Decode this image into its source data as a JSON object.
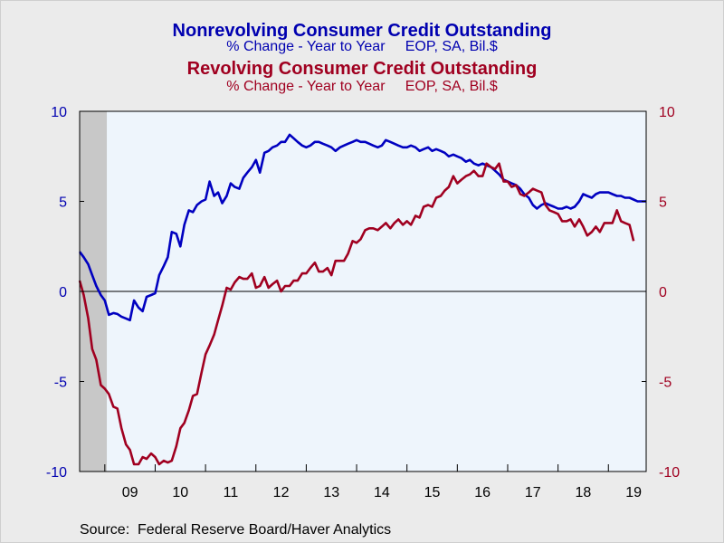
{
  "chart_data": {
    "type": "line",
    "titles": [
      {
        "title": "Nonrevolving Consumer Credit Outstanding",
        "subtitle": "% Change - Year to Year     EOP, SA, Bil.$",
        "color": "#0000b0"
      },
      {
        "title": "Revolving Consumer Credit Outstanding",
        "subtitle": "% Change - Year to Year     EOP, SA, Bil.$",
        "color": "#a00020"
      }
    ],
    "x_range": [
      2008.5,
      2019.75
    ],
    "x_ticks": [
      {
        "label": "09",
        "at": 2009.5
      },
      {
        "label": "10",
        "at": 2010.5
      },
      {
        "label": "11",
        "at": 2011.5
      },
      {
        "label": "12",
        "at": 2012.5
      },
      {
        "label": "13",
        "at": 2013.5
      },
      {
        "label": "14",
        "at": 2014.5
      },
      {
        "label": "15",
        "at": 2015.5
      },
      {
        "label": "16",
        "at": 2016.5
      },
      {
        "label": "17",
        "at": 2017.5
      },
      {
        "label": "18",
        "at": 2018.5
      },
      {
        "label": "19",
        "at": 2019.5
      }
    ],
    "ylim": [
      -10,
      10
    ],
    "y_ticks": [
      -10,
      -5,
      0,
      5,
      10
    ],
    "left_axis_color": "#0000b0",
    "right_axis_color": "#a00020",
    "recession_shading": {
      "start": 2008.5,
      "end": 2009.04,
      "color": "#c8c8c8"
    },
    "plot_background": "#eef5fc",
    "series": [
      {
        "name": "Nonrevolving Consumer Credit Outstanding",
        "axis": "left",
        "color": "#0000c0",
        "points": [
          [
            2008.5,
            2.2
          ],
          [
            2008.58,
            1.9
          ],
          [
            2008.67,
            1.5
          ],
          [
            2008.75,
            0.9
          ],
          [
            2008.83,
            0.3
          ],
          [
            2008.92,
            -0.2
          ],
          [
            2009.0,
            -0.5
          ],
          [
            2009.08,
            -1.3
          ],
          [
            2009.17,
            -1.2
          ],
          [
            2009.25,
            -1.25
          ],
          [
            2009.33,
            -1.4
          ],
          [
            2009.42,
            -1.5
          ],
          [
            2009.5,
            -1.6
          ],
          [
            2009.58,
            -0.5
          ],
          [
            2009.67,
            -0.9
          ],
          [
            2009.75,
            -1.1
          ],
          [
            2009.83,
            -0.3
          ],
          [
            2009.92,
            -0.2
          ],
          [
            2010.0,
            -0.1
          ],
          [
            2010.08,
            0.9
          ],
          [
            2010.17,
            1.4
          ],
          [
            2010.25,
            1.9
          ],
          [
            2010.33,
            3.3
          ],
          [
            2010.42,
            3.2
          ],
          [
            2010.5,
            2.5
          ],
          [
            2010.58,
            3.7
          ],
          [
            2010.67,
            4.5
          ],
          [
            2010.75,
            4.4
          ],
          [
            2010.83,
            4.8
          ],
          [
            2010.92,
            5.0
          ],
          [
            2011.0,
            5.1
          ],
          [
            2011.08,
            6.1
          ],
          [
            2011.17,
            5.3
          ],
          [
            2011.25,
            5.5
          ],
          [
            2011.33,
            4.9
          ],
          [
            2011.42,
            5.3
          ],
          [
            2011.5,
            6.0
          ],
          [
            2011.58,
            5.8
          ],
          [
            2011.67,
            5.7
          ],
          [
            2011.75,
            6.3
          ],
          [
            2011.83,
            6.6
          ],
          [
            2011.92,
            6.9
          ],
          [
            2012.0,
            7.3
          ],
          [
            2012.08,
            6.6
          ],
          [
            2012.17,
            7.7
          ],
          [
            2012.25,
            7.8
          ],
          [
            2012.33,
            8.0
          ],
          [
            2012.42,
            8.1
          ],
          [
            2012.5,
            8.3
          ],
          [
            2012.58,
            8.3
          ],
          [
            2012.67,
            8.7
          ],
          [
            2012.75,
            8.5
          ],
          [
            2012.83,
            8.3
          ],
          [
            2012.92,
            8.1
          ],
          [
            2013.0,
            8.0
          ],
          [
            2013.08,
            8.1
          ],
          [
            2013.17,
            8.3
          ],
          [
            2013.25,
            8.3
          ],
          [
            2013.33,
            8.2
          ],
          [
            2013.42,
            8.1
          ],
          [
            2013.5,
            8.0
          ],
          [
            2013.58,
            7.8
          ],
          [
            2013.67,
            8.0
          ],
          [
            2013.75,
            8.1
          ],
          [
            2013.83,
            8.2
          ],
          [
            2013.92,
            8.3
          ],
          [
            2014.0,
            8.4
          ],
          [
            2014.08,
            8.3
          ],
          [
            2014.17,
            8.3
          ],
          [
            2014.25,
            8.2
          ],
          [
            2014.33,
            8.1
          ],
          [
            2014.42,
            8.0
          ],
          [
            2014.5,
            8.1
          ],
          [
            2014.58,
            8.4
          ],
          [
            2014.67,
            8.3
          ],
          [
            2014.75,
            8.2
          ],
          [
            2014.83,
            8.1
          ],
          [
            2014.92,
            8.0
          ],
          [
            2015.0,
            8.0
          ],
          [
            2015.08,
            8.1
          ],
          [
            2015.17,
            8.0
          ],
          [
            2015.25,
            7.8
          ],
          [
            2015.33,
            7.9
          ],
          [
            2015.42,
            8.0
          ],
          [
            2015.5,
            7.8
          ],
          [
            2015.58,
            7.9
          ],
          [
            2015.67,
            7.8
          ],
          [
            2015.75,
            7.7
          ],
          [
            2015.83,
            7.5
          ],
          [
            2015.92,
            7.6
          ],
          [
            2016.0,
            7.5
          ],
          [
            2016.08,
            7.4
          ],
          [
            2016.17,
            7.2
          ],
          [
            2016.25,
            7.3
          ],
          [
            2016.33,
            7.1
          ],
          [
            2016.42,
            7.0
          ],
          [
            2016.5,
            7.1
          ],
          [
            2016.58,
            7.0
          ],
          [
            2016.67,
            6.9
          ],
          [
            2016.75,
            6.7
          ],
          [
            2016.83,
            6.5
          ],
          [
            2016.92,
            6.2
          ],
          [
            2017.0,
            6.1
          ],
          [
            2017.08,
            6.0
          ],
          [
            2017.17,
            5.9
          ],
          [
            2017.25,
            5.7
          ],
          [
            2017.33,
            5.4
          ],
          [
            2017.42,
            5.2
          ],
          [
            2017.5,
            4.8
          ],
          [
            2017.58,
            4.6
          ],
          [
            2017.67,
            4.8
          ],
          [
            2017.75,
            4.9
          ],
          [
            2017.83,
            4.8
          ],
          [
            2017.92,
            4.7
          ],
          [
            2018.0,
            4.6
          ],
          [
            2018.08,
            4.6
          ],
          [
            2018.17,
            4.7
          ],
          [
            2018.25,
            4.6
          ],
          [
            2018.33,
            4.7
          ],
          [
            2018.42,
            5.0
          ],
          [
            2018.5,
            5.4
          ],
          [
            2018.58,
            5.3
          ],
          [
            2018.67,
            5.2
          ],
          [
            2018.75,
            5.4
          ],
          [
            2018.83,
            5.5
          ],
          [
            2018.92,
            5.5
          ],
          [
            2019.0,
            5.5
          ],
          [
            2019.08,
            5.4
          ],
          [
            2019.17,
            5.3
          ],
          [
            2019.25,
            5.3
          ],
          [
            2019.33,
            5.2
          ],
          [
            2019.42,
            5.2
          ],
          [
            2019.5,
            5.1
          ],
          [
            2019.58,
            5.0
          ],
          [
            2019.67,
            5.0
          ],
          [
            2019.75,
            5.0
          ]
        ]
      },
      {
        "name": "Revolving Consumer Credit Outstanding",
        "axis": "right",
        "color": "#a00020",
        "points": [
          [
            2008.5,
            0.6
          ],
          [
            2008.58,
            -0.2
          ],
          [
            2008.67,
            -1.5
          ],
          [
            2008.75,
            -3.2
          ],
          [
            2008.83,
            -3.8
          ],
          [
            2008.92,
            -5.2
          ],
          [
            2009.0,
            -5.4
          ],
          [
            2009.08,
            -5.7
          ],
          [
            2009.17,
            -6.4
          ],
          [
            2009.25,
            -6.5
          ],
          [
            2009.33,
            -7.6
          ],
          [
            2009.42,
            -8.5
          ],
          [
            2009.5,
            -8.8
          ],
          [
            2009.58,
            -9.6
          ],
          [
            2009.67,
            -9.6
          ],
          [
            2009.75,
            -9.2
          ],
          [
            2009.83,
            -9.3
          ],
          [
            2009.92,
            -9.0
          ],
          [
            2010.0,
            -9.2
          ],
          [
            2010.08,
            -9.6
          ],
          [
            2010.17,
            -9.4
          ],
          [
            2010.25,
            -9.5
          ],
          [
            2010.33,
            -9.4
          ],
          [
            2010.42,
            -8.6
          ],
          [
            2010.5,
            -7.6
          ],
          [
            2010.58,
            -7.3
          ],
          [
            2010.67,
            -6.6
          ],
          [
            2010.75,
            -5.8
          ],
          [
            2010.83,
            -5.7
          ],
          [
            2010.92,
            -4.5
          ],
          [
            2011.0,
            -3.5
          ],
          [
            2011.08,
            -3.0
          ],
          [
            2011.17,
            -2.4
          ],
          [
            2011.25,
            -1.6
          ],
          [
            2011.33,
            -0.8
          ],
          [
            2011.42,
            0.2
          ],
          [
            2011.5,
            0.1
          ],
          [
            2011.58,
            0.5
          ],
          [
            2011.67,
            0.8
          ],
          [
            2011.75,
            0.7
          ],
          [
            2011.83,
            0.7
          ],
          [
            2011.92,
            1.0
          ],
          [
            2012.0,
            0.2
          ],
          [
            2012.08,
            0.3
          ],
          [
            2012.17,
            0.8
          ],
          [
            2012.25,
            0.2
          ],
          [
            2012.33,
            0.4
          ],
          [
            2012.42,
            0.6
          ],
          [
            2012.5,
            0.0
          ],
          [
            2012.58,
            0.3
          ],
          [
            2012.67,
            0.3
          ],
          [
            2012.75,
            0.6
          ],
          [
            2012.83,
            0.6
          ],
          [
            2012.92,
            1.0
          ],
          [
            2013.0,
            1.0
          ],
          [
            2013.08,
            1.3
          ],
          [
            2013.17,
            1.6
          ],
          [
            2013.25,
            1.1
          ],
          [
            2013.33,
            1.1
          ],
          [
            2013.42,
            1.3
          ],
          [
            2013.5,
            0.9
          ],
          [
            2013.58,
            1.7
          ],
          [
            2013.67,
            1.7
          ],
          [
            2013.75,
            1.7
          ],
          [
            2013.83,
            2.1
          ],
          [
            2013.92,
            2.8
          ],
          [
            2014.0,
            2.7
          ],
          [
            2014.08,
            2.9
          ],
          [
            2014.17,
            3.4
          ],
          [
            2014.25,
            3.5
          ],
          [
            2014.33,
            3.5
          ],
          [
            2014.42,
            3.4
          ],
          [
            2014.5,
            3.6
          ],
          [
            2014.58,
            3.8
          ],
          [
            2014.67,
            3.5
          ],
          [
            2014.75,
            3.8
          ],
          [
            2014.83,
            4.0
          ],
          [
            2014.92,
            3.7
          ],
          [
            2015.0,
            3.9
          ],
          [
            2015.08,
            3.7
          ],
          [
            2015.17,
            4.2
          ],
          [
            2015.25,
            4.1
          ],
          [
            2015.33,
            4.7
          ],
          [
            2015.42,
            4.8
          ],
          [
            2015.5,
            4.7
          ],
          [
            2015.58,
            5.2
          ],
          [
            2015.67,
            5.3
          ],
          [
            2015.75,
            5.6
          ],
          [
            2015.83,
            5.8
          ],
          [
            2015.92,
            6.4
          ],
          [
            2016.0,
            6.0
          ],
          [
            2016.08,
            6.2
          ],
          [
            2016.17,
            6.4
          ],
          [
            2016.25,
            6.5
          ],
          [
            2016.33,
            6.7
          ],
          [
            2016.42,
            6.4
          ],
          [
            2016.5,
            6.4
          ],
          [
            2016.58,
            7.1
          ],
          [
            2016.67,
            6.9
          ],
          [
            2016.75,
            6.8
          ],
          [
            2016.83,
            7.1
          ],
          [
            2016.92,
            6.1
          ],
          [
            2017.0,
            6.1
          ],
          [
            2017.08,
            5.8
          ],
          [
            2017.17,
            5.9
          ],
          [
            2017.25,
            5.4
          ],
          [
            2017.33,
            5.3
          ],
          [
            2017.42,
            5.5
          ],
          [
            2017.5,
            5.7
          ],
          [
            2017.58,
            5.6
          ],
          [
            2017.67,
            5.5
          ],
          [
            2017.75,
            4.8
          ],
          [
            2017.83,
            4.5
          ],
          [
            2017.92,
            4.4
          ],
          [
            2018.0,
            4.3
          ],
          [
            2018.08,
            3.9
          ],
          [
            2018.17,
            3.9
          ],
          [
            2018.25,
            4.0
          ],
          [
            2018.33,
            3.6
          ],
          [
            2018.42,
            4.0
          ],
          [
            2018.5,
            3.6
          ],
          [
            2018.58,
            3.1
          ],
          [
            2018.67,
            3.3
          ],
          [
            2018.75,
            3.6
          ],
          [
            2018.83,
            3.3
          ],
          [
            2018.92,
            3.8
          ],
          [
            2019.0,
            3.8
          ],
          [
            2019.08,
            3.8
          ],
          [
            2019.17,
            4.5
          ],
          [
            2019.25,
            3.9
          ],
          [
            2019.33,
            3.8
          ],
          [
            2019.42,
            3.7
          ],
          [
            2019.5,
            2.8
          ]
        ]
      }
    ]
  },
  "source_text": "Source:  Federal Reserve Board/Haver Analytics"
}
